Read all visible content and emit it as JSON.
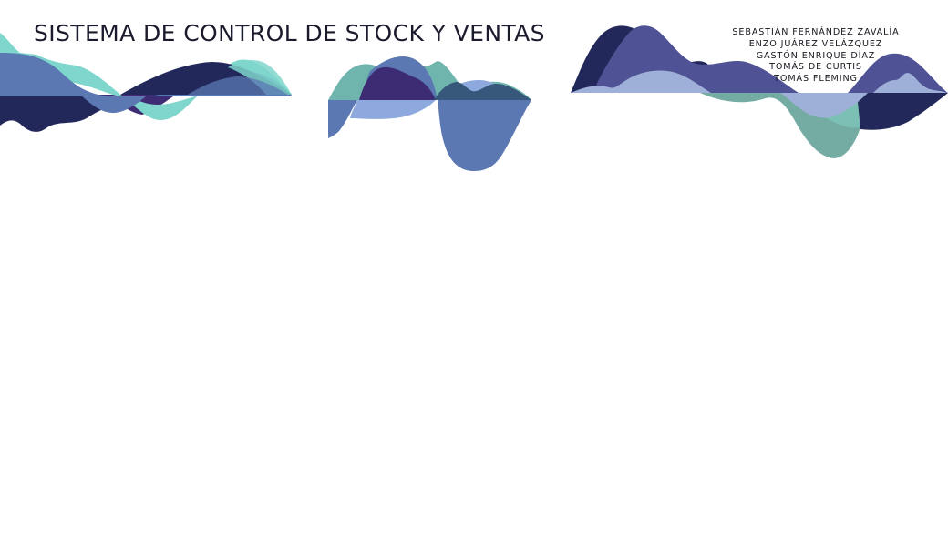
{
  "title": "SISTEMA DE CONTROL DE STOCK Y VENTAS",
  "authors": [
    "SEBASTIÁN FERNÁNDEZ ZAVALÍA",
    "ENZO JUÁREZ VELÁZQUEZ",
    "GASTÓN ENRIQUE DÍAZ",
    "TOMÁS DE CURTIS",
    "TOMÁS FLEMING"
  ],
  "palette": {
    "navy": "#22295a",
    "indigo": "#3d2c73",
    "slate_violet": "#4f5395",
    "steel_blue": "#5b78b3",
    "periwinkle": "#8ea9de",
    "light_lilac": "#9fb0d8",
    "teal": "#6fb5ad",
    "aqua": "#7fd6cc",
    "sea_green": "#74aba3",
    "dark_slate": "#37587a"
  }
}
